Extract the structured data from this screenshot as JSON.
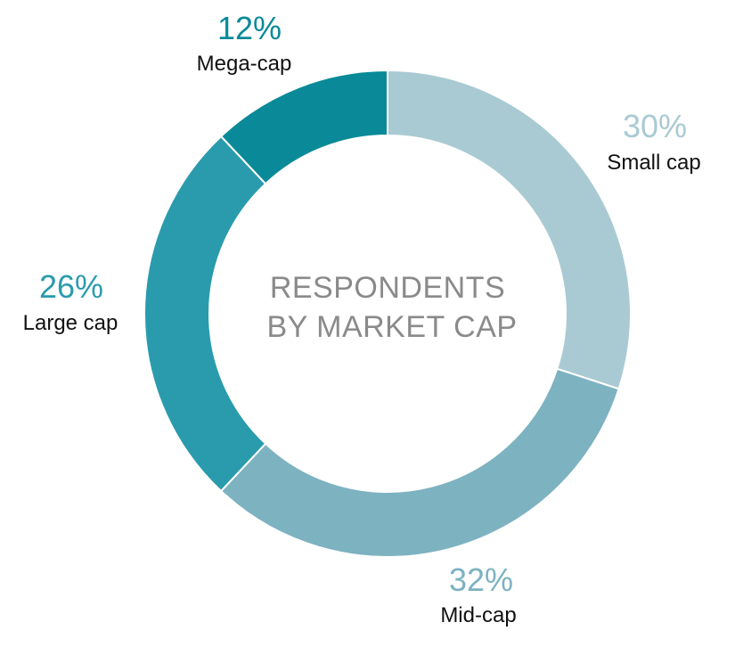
{
  "chart_data": {
    "type": "pie",
    "donut": true,
    "center_title_lines": [
      "RESPONDENTS",
      "BY MARKET CAP"
    ],
    "slices": [
      {
        "name": "Small cap",
        "value": 30,
        "label": "30%",
        "color": "#a9cad3"
      },
      {
        "name": "Mid-cap",
        "value": 32,
        "label": "32%",
        "color": "#7db2c1"
      },
      {
        "name": "Large cap",
        "value": 26,
        "label": "26%",
        "color": "#2a9bad"
      },
      {
        "name": "Mega-cap",
        "value": 12,
        "label": "12%",
        "color": "#0a8a98"
      }
    ]
  }
}
